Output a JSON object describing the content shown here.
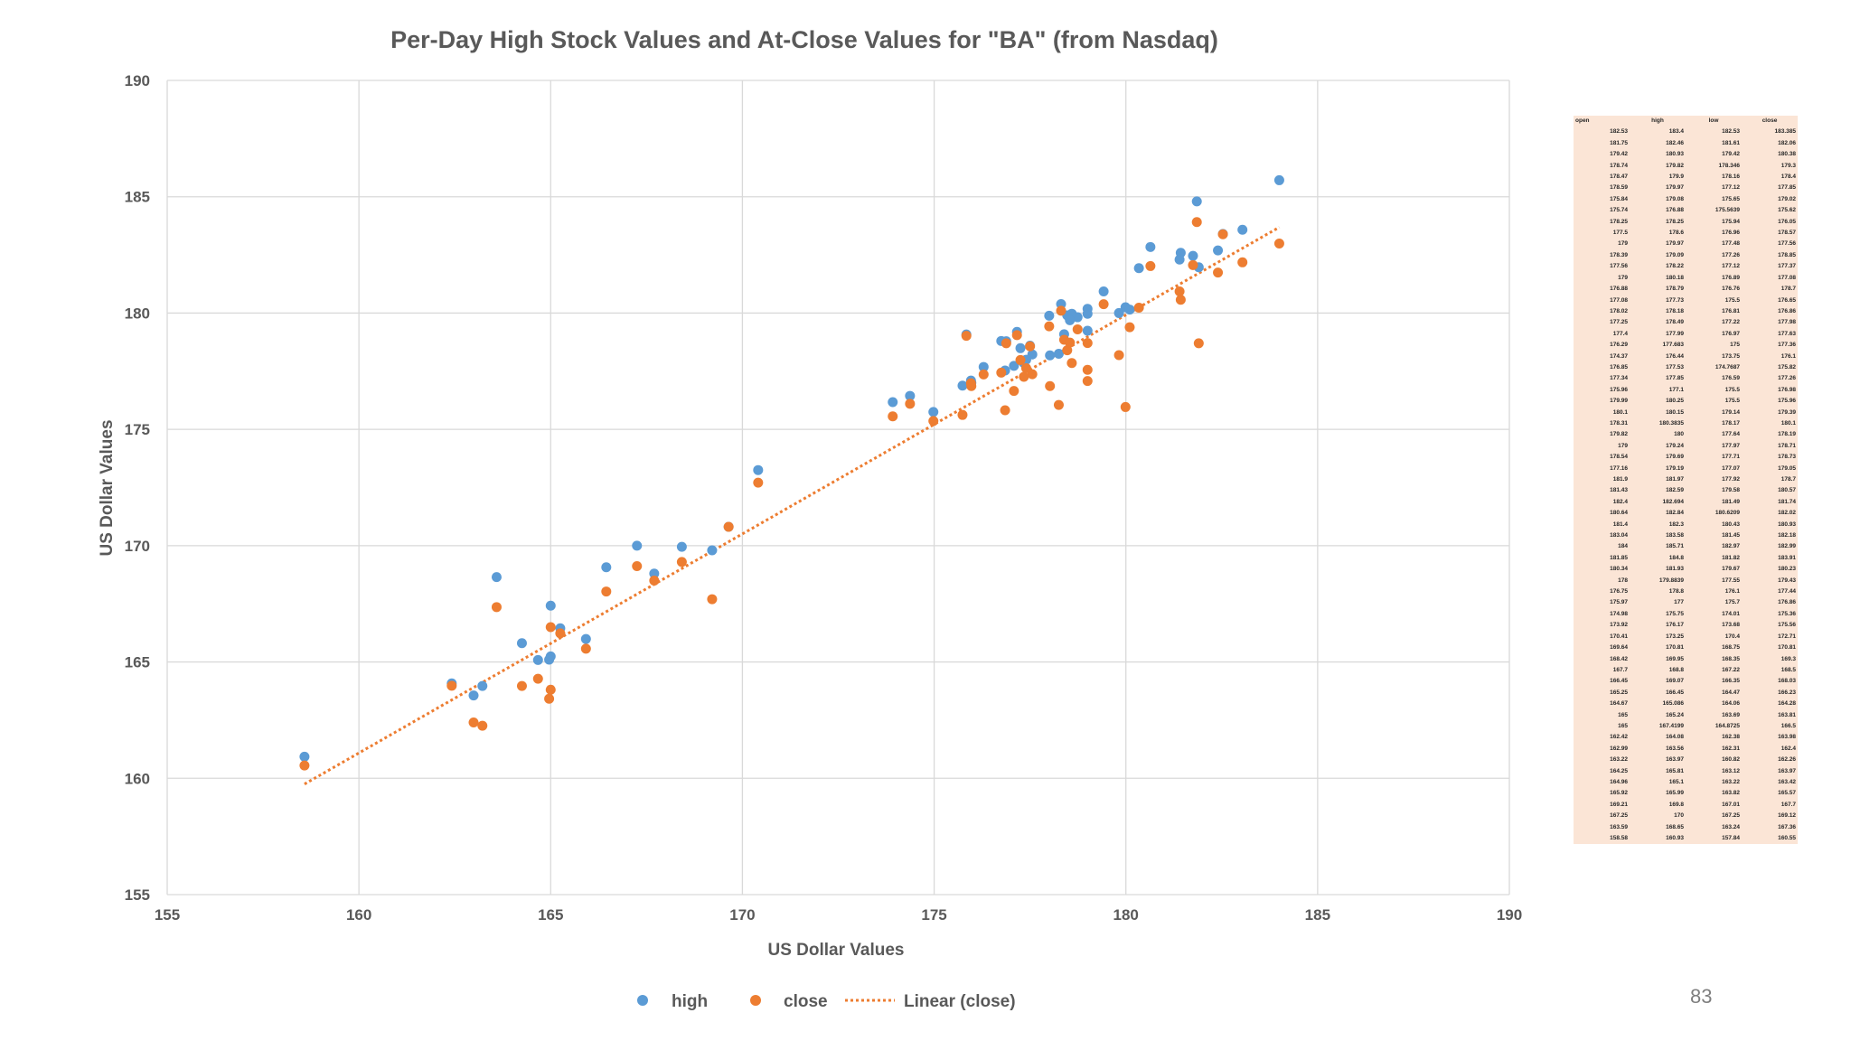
{
  "chart_data": {
    "type": "scatter",
    "title": "Per-Day High Stock Values and At-Close Values for \"BA\" (from Nasdaq)",
    "xlabel": "US Dollar Values",
    "ylabel": "US Dollar Values",
    "xlim": [
      155,
      190
    ],
    "ylim": [
      155,
      190
    ],
    "x_ticks": [
      155,
      160,
      165,
      170,
      175,
      180,
      185,
      190
    ],
    "y_ticks": [
      155,
      160,
      165,
      170,
      175,
      180,
      185,
      190
    ],
    "grid": true,
    "legend_position": "bottom",
    "series": [
      {
        "name": "high",
        "color": "#5b9bd5",
        "points": [
          [
            182.53,
            183.4
          ],
          [
            181.75,
            182.46
          ],
          [
            179.42,
            180.93
          ],
          [
            178.74,
            179.82
          ],
          [
            178.47,
            179.9
          ],
          [
            178.59,
            179.97
          ],
          [
            175.84,
            179.08
          ],
          [
            175.74,
            176.88
          ],
          [
            178.25,
            178.25
          ],
          [
            177.5,
            178.6
          ],
          [
            179,
            179.97
          ],
          [
            178.39,
            179.09
          ],
          [
            177.56,
            178.22
          ],
          [
            179,
            180.18
          ],
          [
            176.88,
            178.79
          ],
          [
            177.08,
            177.73
          ],
          [
            178.02,
            178.18
          ],
          [
            177.25,
            178.49
          ],
          [
            177.4,
            177.99
          ],
          [
            176.29,
            177.683
          ],
          [
            174.37,
            176.44
          ],
          [
            176.85,
            177.53
          ],
          [
            177.34,
            177.85
          ],
          [
            175.96,
            177.1
          ],
          [
            179.99,
            180.25
          ],
          [
            180.1,
            180.15
          ],
          [
            178.31,
            180.3835
          ],
          [
            179.82,
            180
          ],
          [
            179,
            179.24
          ],
          [
            178.54,
            179.69
          ],
          [
            177.16,
            179.19
          ],
          [
            181.9,
            181.97
          ],
          [
            181.43,
            182.59
          ],
          [
            182.4,
            182.694
          ],
          [
            180.64,
            182.84
          ],
          [
            181.4,
            182.3
          ],
          [
            183.04,
            183.58
          ],
          [
            184,
            185.71
          ],
          [
            181.85,
            184.8
          ],
          [
            180.34,
            181.93
          ],
          [
            178,
            179.8839
          ],
          [
            176.75,
            178.8
          ],
          [
            175.97,
            177
          ],
          [
            174.98,
            175.75
          ],
          [
            173.92,
            176.17
          ],
          [
            170.41,
            173.25
          ],
          [
            169.64,
            170.81
          ],
          [
            168.42,
            169.95
          ],
          [
            167.7,
            168.8
          ],
          [
            166.45,
            169.07
          ],
          [
            165.25,
            166.45
          ],
          [
            164.67,
            165.086
          ],
          [
            165,
            165.24
          ],
          [
            165,
            167.4199
          ],
          [
            162.42,
            164.08
          ],
          [
            162.99,
            163.56
          ],
          [
            163.22,
            163.97
          ],
          [
            164.25,
            165.81
          ],
          [
            164.96,
            165.1
          ],
          [
            165.92,
            165.99
          ],
          [
            169.21,
            169.8
          ],
          [
            167.25,
            170
          ],
          [
            163.59,
            168.65
          ],
          [
            158.58,
            160.93
          ]
        ]
      },
      {
        "name": "close",
        "color": "#ed7d31",
        "points": [
          [
            182.53,
            183.385
          ],
          [
            181.75,
            182.06
          ],
          [
            179.42,
            180.38
          ],
          [
            178.74,
            179.3
          ],
          [
            178.47,
            178.4
          ],
          [
            178.59,
            177.85
          ],
          [
            175.84,
            179.02
          ],
          [
            175.74,
            175.62
          ],
          [
            178.25,
            176.05
          ],
          [
            177.5,
            178.57
          ],
          [
            179,
            177.56
          ],
          [
            178.39,
            178.85
          ],
          [
            177.56,
            177.37
          ],
          [
            179,
            177.08
          ],
          [
            176.88,
            178.7
          ],
          [
            177.08,
            176.65
          ],
          [
            178.02,
            176.86
          ],
          [
            177.25,
            177.98
          ],
          [
            177.4,
            177.63
          ],
          [
            176.29,
            177.36
          ],
          [
            174.37,
            176.1
          ],
          [
            176.85,
            175.82
          ],
          [
            177.34,
            177.26
          ],
          [
            175.96,
            176.98
          ],
          [
            179.99,
            175.96
          ],
          [
            180.1,
            179.39
          ],
          [
            178.31,
            180.1
          ],
          [
            179.82,
            178.19
          ],
          [
            179,
            178.71
          ],
          [
            178.54,
            178.73
          ],
          [
            177.16,
            179.05
          ],
          [
            181.9,
            178.7
          ],
          [
            181.43,
            180.57
          ],
          [
            182.4,
            181.74
          ],
          [
            180.64,
            182.02
          ],
          [
            181.4,
            180.93
          ],
          [
            183.04,
            182.18
          ],
          [
            184,
            182.99
          ],
          [
            181.85,
            183.91
          ],
          [
            180.34,
            180.23
          ],
          [
            178,
            179.43
          ],
          [
            176.75,
            177.44
          ],
          [
            175.97,
            176.86
          ],
          [
            174.98,
            175.36
          ],
          [
            173.92,
            175.56
          ],
          [
            170.41,
            172.71
          ],
          [
            169.64,
            170.81
          ],
          [
            168.42,
            169.3
          ],
          [
            167.7,
            168.5
          ],
          [
            166.45,
            168.03
          ],
          [
            165.25,
            166.23
          ],
          [
            164.67,
            164.28
          ],
          [
            165,
            163.81
          ],
          [
            165,
            166.5
          ],
          [
            162.42,
            163.98
          ],
          [
            162.99,
            162.4
          ],
          [
            163.22,
            162.26
          ],
          [
            164.25,
            163.97
          ],
          [
            164.96,
            163.42
          ],
          [
            165.92,
            165.57
          ],
          [
            169.21,
            167.7
          ],
          [
            167.25,
            169.12
          ],
          [
            163.59,
            167.36
          ],
          [
            158.58,
            160.55
          ]
        ]
      }
    ],
    "trendline": {
      "name": "Linear (close)",
      "color": "#ed7d31",
      "style": "dotted",
      "of_series": "close"
    }
  },
  "data_table": {
    "headers": [
      "open",
      "high",
      "low",
      "close"
    ],
    "rows": [
      [
        "182.53",
        "183.4",
        "182.53",
        "183.385"
      ],
      [
        "181.75",
        "182.46",
        "181.61",
        "182.06"
      ],
      [
        "179.42",
        "180.93",
        "179.42",
        "180.38"
      ],
      [
        "178.74",
        "179.82",
        "178.346",
        "179.3"
      ],
      [
        "178.47",
        "179.9",
        "178.16",
        "178.4"
      ],
      [
        "178.59",
        "179.97",
        "177.12",
        "177.85"
      ],
      [
        "175.84",
        "179.08",
        "175.65",
        "179.02"
      ],
      [
        "175.74",
        "176.88",
        "175.5639",
        "175.62"
      ],
      [
        "178.25",
        "178.25",
        "175.94",
        "176.05"
      ],
      [
        "177.5",
        "178.6",
        "176.96",
        "178.57"
      ],
      [
        "179",
        "179.97",
        "177.48",
        "177.56"
      ],
      [
        "178.39",
        "179.09",
        "177.26",
        "178.85"
      ],
      [
        "177.56",
        "178.22",
        "177.12",
        "177.37"
      ],
      [
        "179",
        "180.18",
        "176.89",
        "177.08"
      ],
      [
        "176.88",
        "178.79",
        "176.76",
        "178.7"
      ],
      [
        "177.08",
        "177.73",
        "175.5",
        "176.65"
      ],
      [
        "178.02",
        "178.18",
        "176.81",
        "176.86"
      ],
      [
        "177.25",
        "178.49",
        "177.22",
        "177.98"
      ],
      [
        "177.4",
        "177.99",
        "176.97",
        "177.63"
      ],
      [
        "176.29",
        "177.683",
        "175",
        "177.36"
      ],
      [
        "174.37",
        "176.44",
        "173.75",
        "176.1"
      ],
      [
        "176.85",
        "177.53",
        "174.7687",
        "175.82"
      ],
      [
        "177.34",
        "177.85",
        "176.59",
        "177.26"
      ],
      [
        "175.96",
        "177.1",
        "175.5",
        "176.98"
      ],
      [
        "179.99",
        "180.25",
        "175.5",
        "175.96"
      ],
      [
        "180.1",
        "180.15",
        "179.14",
        "179.39"
      ],
      [
        "178.31",
        "180.3835",
        "178.17",
        "180.1"
      ],
      [
        "179.82",
        "180",
        "177.64",
        "178.19"
      ],
      [
        "179",
        "179.24",
        "177.97",
        "178.71"
      ],
      [
        "178.54",
        "179.69",
        "177.71",
        "178.73"
      ],
      [
        "177.16",
        "179.19",
        "177.07",
        "179.05"
      ],
      [
        "181.9",
        "181.97",
        "177.92",
        "178.7"
      ],
      [
        "181.43",
        "182.59",
        "179.58",
        "180.57"
      ],
      [
        "182.4",
        "182.694",
        "181.49",
        "181.74"
      ],
      [
        "180.64",
        "182.84",
        "180.6209",
        "182.02"
      ],
      [
        "181.4",
        "182.3",
        "180.43",
        "180.93"
      ],
      [
        "183.04",
        "183.58",
        "181.45",
        "182.18"
      ],
      [
        "184",
        "185.71",
        "182.97",
        "182.99"
      ],
      [
        "181.85",
        "184.8",
        "181.82",
        "183.91"
      ],
      [
        "180.34",
        "181.93",
        "179.67",
        "180.23"
      ],
      [
        "178",
        "179.8839",
        "177.55",
        "179.43"
      ],
      [
        "176.75",
        "178.8",
        "176.1",
        "177.44"
      ],
      [
        "175.97",
        "177",
        "175.7",
        "176.86"
      ],
      [
        "174.98",
        "175.75",
        "174.01",
        "175.36"
      ],
      [
        "173.92",
        "176.17",
        "173.68",
        "175.56"
      ],
      [
        "170.41",
        "173.25",
        "170.4",
        "172.71"
      ],
      [
        "169.64",
        "170.81",
        "168.75",
        "170.81"
      ],
      [
        "168.42",
        "169.95",
        "168.35",
        "169.3"
      ],
      [
        "167.7",
        "168.8",
        "167.22",
        "168.5"
      ],
      [
        "166.45",
        "169.07",
        "166.35",
        "168.03"
      ],
      [
        "165.25",
        "166.45",
        "164.47",
        "166.23"
      ],
      [
        "164.67",
        "165.086",
        "164.06",
        "164.28"
      ],
      [
        "165",
        "165.24",
        "163.69",
        "163.81"
      ],
      [
        "165",
        "167.4199",
        "164.8725",
        "166.5"
      ],
      [
        "162.42",
        "164.08",
        "162.38",
        "163.98"
      ],
      [
        "162.99",
        "163.56",
        "162.31",
        "162.4"
      ],
      [
        "163.22",
        "163.97",
        "160.82",
        "162.26"
      ],
      [
        "164.25",
        "165.81",
        "163.12",
        "163.97"
      ],
      [
        "164.96",
        "165.1",
        "163.22",
        "163.42"
      ],
      [
        "165.92",
        "165.99",
        "163.82",
        "165.57"
      ],
      [
        "169.21",
        "169.8",
        "167.01",
        "167.7"
      ],
      [
        "167.25",
        "170",
        "167.25",
        "169.12"
      ],
      [
        "163.59",
        "168.65",
        "163.24",
        "167.36"
      ],
      [
        "158.58",
        "160.93",
        "157.84",
        "160.55"
      ]
    ]
  },
  "page_number": "83"
}
